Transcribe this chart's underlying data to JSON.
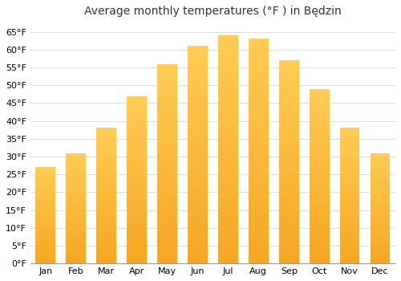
{
  "title": "Average monthly temperatures (°F ) in Będzin",
  "months": [
    "Jan",
    "Feb",
    "Mar",
    "Apr",
    "May",
    "Jun",
    "Jul",
    "Aug",
    "Sep",
    "Oct",
    "Nov",
    "Dec"
  ],
  "values": [
    27,
    31,
    38,
    47,
    56,
    61,
    64,
    63,
    57,
    49,
    38,
    31
  ],
  "bar_color_bottom": "#F5A623",
  "bar_color_top": "#FFCC55",
  "ylim": [
    0,
    68
  ],
  "yticks": [
    0,
    5,
    10,
    15,
    20,
    25,
    30,
    35,
    40,
    45,
    50,
    55,
    60,
    65
  ],
  "ytick_labels": [
    "0°F",
    "5°F",
    "10°F",
    "15°F",
    "20°F",
    "25°F",
    "30°F",
    "35°F",
    "40°F",
    "45°F",
    "50°F",
    "55°F",
    "60°F",
    "65°F"
  ],
  "background_color": "#ffffff",
  "grid_color": "#dddddd",
  "title_fontsize": 10,
  "tick_fontsize": 8,
  "bar_width": 0.65,
  "fig_width": 5.0,
  "fig_height": 3.5
}
